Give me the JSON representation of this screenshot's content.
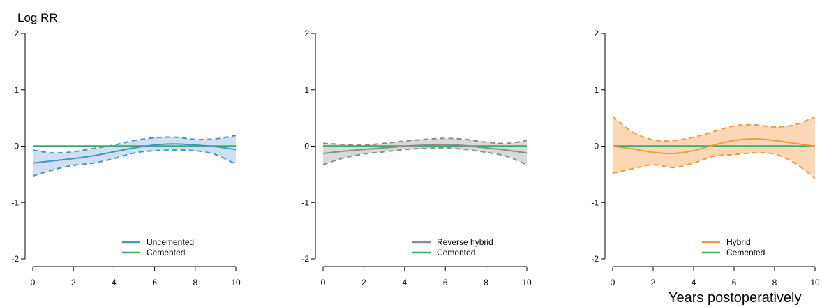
{
  "figure": {
    "ylabel": "Log RR",
    "xlabel": "Years postoperatively"
  },
  "chart_data": [
    {
      "type": "line",
      "xlim": [
        0,
        10
      ],
      "ylim": [
        -2,
        2
      ],
      "xticks": [
        0,
        2,
        4,
        6,
        8,
        10
      ],
      "yticks": [
        -2,
        -1,
        0,
        1,
        2
      ],
      "grid": false,
      "legend_placement": "bottom-right",
      "series": [
        {
          "name": "Uncemented",
          "color": "#4a90cc",
          "band_color": "#cfe0f3",
          "x": [
            0,
            1,
            2,
            3,
            4,
            5,
            6,
            7,
            8,
            9,
            10
          ],
          "values": [
            -0.3,
            -0.26,
            -0.22,
            -0.17,
            -0.1,
            -0.03,
            0.02,
            0.04,
            0.02,
            -0.01,
            -0.06
          ],
          "lower": [
            -0.53,
            -0.42,
            -0.34,
            -0.3,
            -0.22,
            -0.12,
            -0.08,
            -0.07,
            -0.08,
            -0.15,
            -0.32
          ],
          "upper": [
            -0.07,
            -0.12,
            -0.1,
            -0.04,
            0.02,
            0.1,
            0.15,
            0.16,
            0.12,
            0.13,
            0.19
          ]
        },
        {
          "name": "Cemented",
          "color": "#3aaa6d",
          "x": [
            0,
            10
          ],
          "values": [
            0,
            0
          ]
        }
      ]
    },
    {
      "type": "line",
      "xlim": [
        0,
        10
      ],
      "ylim": [
        -2,
        2
      ],
      "xticks": [
        0,
        2,
        4,
        6,
        8,
        10
      ],
      "yticks": [
        -2,
        -1,
        0,
        1,
        2
      ],
      "grid": false,
      "legend_placement": "bottom-right",
      "series": [
        {
          "name": "Reverse hybrid",
          "color": "#8c8c8c",
          "band_color": "#d9d9d9",
          "x": [
            0,
            1,
            2,
            3,
            4,
            5,
            6,
            7,
            8,
            9,
            10
          ],
          "values": [
            -0.13,
            -0.09,
            -0.06,
            -0.03,
            0.0,
            0.02,
            0.03,
            0.01,
            -0.03,
            -0.07,
            -0.12
          ],
          "lower": [
            -0.33,
            -0.21,
            -0.14,
            -0.1,
            -0.06,
            -0.04,
            -0.03,
            -0.06,
            -0.11,
            -0.18,
            -0.33
          ],
          "upper": [
            0.05,
            0.03,
            0.02,
            0.05,
            0.09,
            0.12,
            0.14,
            0.12,
            0.07,
            0.05,
            0.1
          ]
        },
        {
          "name": "Cemented",
          "color": "#3aaa6d",
          "x": [
            0,
            10
          ],
          "values": [
            0,
            0
          ]
        }
      ]
    },
    {
      "type": "line",
      "xlim": [
        0,
        10
      ],
      "ylim": [
        -2,
        2
      ],
      "xticks": [
        0,
        2,
        4,
        6,
        8,
        10
      ],
      "yticks": [
        -2,
        -1,
        0,
        1,
        2
      ],
      "grid": false,
      "legend_placement": "bottom-right",
      "series": [
        {
          "name": "Hybrid",
          "color": "#f0993e",
          "band_color": "#fbd7b6",
          "x": [
            0,
            1,
            2,
            3,
            4,
            5,
            6,
            7,
            8,
            9,
            10
          ],
          "values": [
            0.0,
            -0.05,
            -0.11,
            -0.13,
            -0.08,
            0.02,
            0.1,
            0.13,
            0.1,
            0.05,
            0.0
          ],
          "lower": [
            -0.48,
            -0.4,
            -0.33,
            -0.38,
            -0.3,
            -0.18,
            -0.15,
            -0.12,
            -0.14,
            -0.3,
            -0.57
          ],
          "upper": [
            0.53,
            0.25,
            0.11,
            0.1,
            0.16,
            0.26,
            0.36,
            0.38,
            0.34,
            0.38,
            0.52
          ]
        },
        {
          "name": "Cemented",
          "color": "#3aaa6d",
          "x": [
            0,
            10
          ],
          "values": [
            0,
            0
          ]
        }
      ]
    }
  ]
}
